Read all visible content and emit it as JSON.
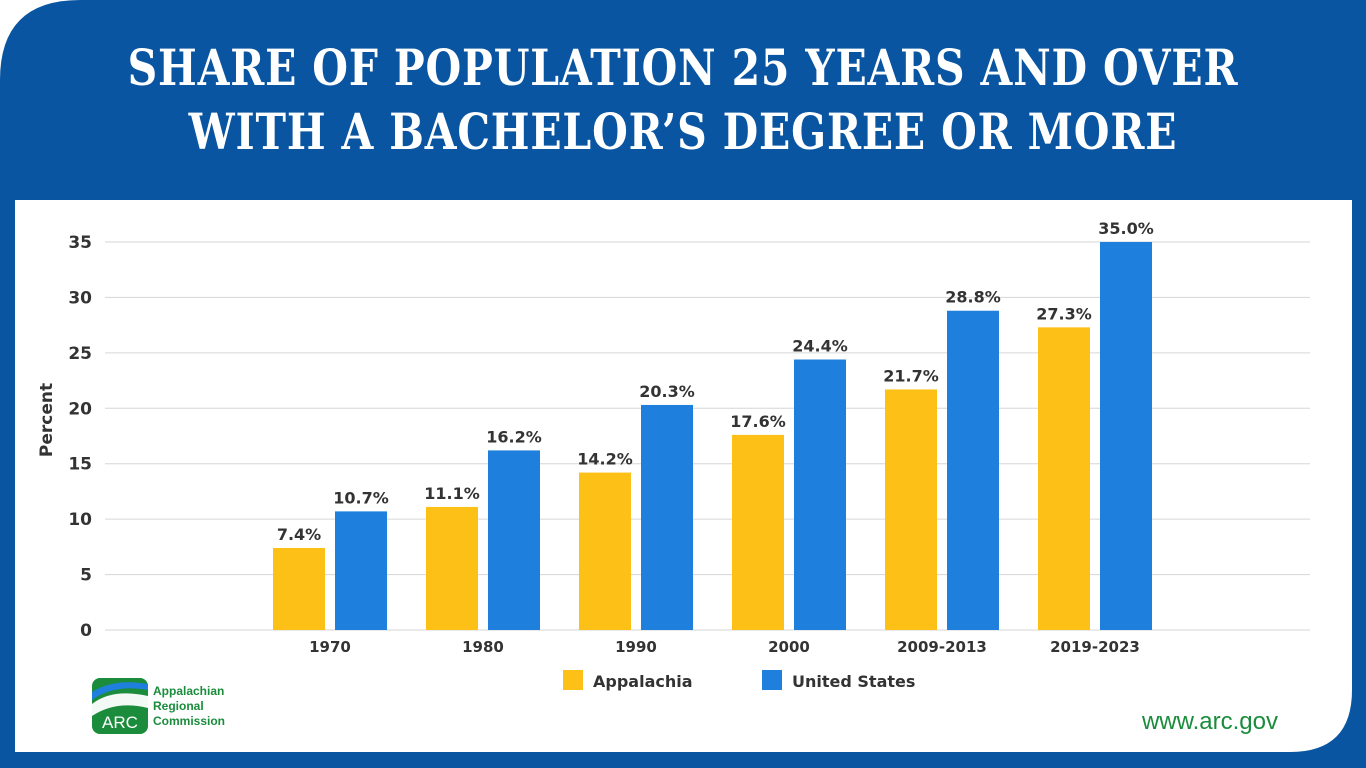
{
  "header": {
    "title_line1": "SHARE OF POPULATION 25 YEARS AND OVER",
    "title_line2": "WITH A BACHELOR’S DEGREE OR MORE"
  },
  "colors": {
    "frame_blue": "#0a55a1",
    "appalachia": "#fdc016",
    "united_states": "#1f7fdc",
    "grid": "#d6d6d6",
    "tick_text": "#333333",
    "arc_green": "#1a8c3c"
  },
  "chart_data": {
    "type": "bar",
    "categories": [
      "1970",
      "1980",
      "1990",
      "2000",
      "2009-2013",
      "2019-2023"
    ],
    "series": [
      {
        "name": "Appalachia",
        "values": [
          7.4,
          11.1,
          14.2,
          17.6,
          21.7,
          27.3
        ],
        "labels": [
          "7.4%",
          "11.1%",
          "14.2%",
          "17.6%",
          "21.7%",
          "27.3%"
        ]
      },
      {
        "name": "United States",
        "values": [
          10.7,
          16.2,
          20.3,
          24.4,
          28.8,
          35.0
        ],
        "labels": [
          "10.7%",
          "16.2%",
          "20.3%",
          "24.4%",
          "28.8%",
          "35.0%"
        ]
      }
    ],
    "ylabel": "Percent",
    "ylim": [
      0,
      35
    ],
    "yticks": [
      0,
      5,
      10,
      15,
      20,
      25,
      30,
      35
    ],
    "grid": true,
    "legend_position": "bottom"
  },
  "logo": {
    "mark_text": "ARC",
    "line1": "Appalachian",
    "line2": "Regional",
    "line3": "Commission"
  },
  "footer": {
    "website": "www.arc.gov"
  }
}
